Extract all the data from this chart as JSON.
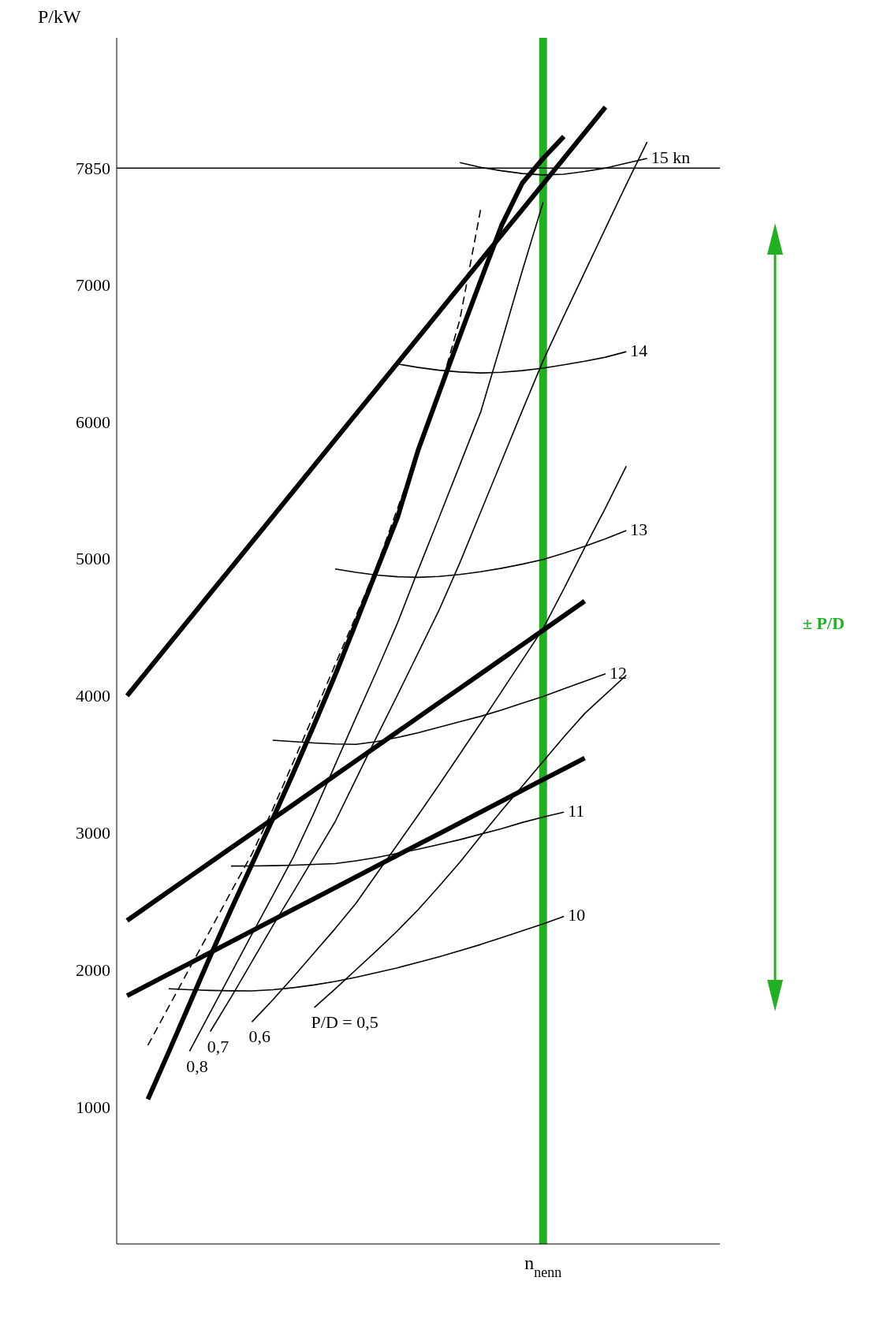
{
  "chart_data": {
    "type": "line",
    "ylabel": "P/kW",
    "ylim": [
      0,
      8800
    ],
    "categories": [
      null,
      null,
      null,
      null,
      null,
      null,
      null,
      null,
      null,
      null,
      null,
      null,
      null,
      null,
      null,
      null,
      null,
      null,
      null,
      null,
      "n$_{nenn}$",
      null,
      null,
      null,
      null,
      null,
      null,
      null,
      null
    ],
    "yticks": [
      1000,
      2000,
      3000,
      4000,
      5000,
      6000,
      7000,
      7850
    ],
    "marker": "none",
    "series": [
      {
        "name": "15 kn",
        "color": "#000000",
        "values": [
          null,
          null,
          null,
          null,
          null,
          null,
          null,
          null,
          null,
          null,
          null,
          null,
          null,
          null,
          null,
          null,
          7890,
          7855,
          7830,
          7810,
          7800,
          7805,
          7825,
          7850,
          7885,
          7920,
          null,
          null,
          null
        ]
      },
      {
        "name": "14",
        "color": "#000000",
        "values": [
          null,
          null,
          null,
          null,
          null,
          null,
          null,
          null,
          null,
          null,
          null,
          null,
          null,
          6420,
          6395,
          6375,
          6362,
          6355,
          6360,
          6372,
          6390,
          6415,
          6440,
          6470,
          6510,
          null,
          null,
          null,
          null
        ]
      },
      {
        "name": "13",
        "color": "#000000",
        "values": [
          null,
          null,
          null,
          null,
          null,
          null,
          null,
          null,
          null,
          null,
          4925,
          4900,
          4880,
          4868,
          4864,
          4870,
          4885,
          4905,
          4930,
          4960,
          4994,
          5040,
          5090,
          5145,
          5205,
          null,
          null,
          null,
          null
        ]
      },
      {
        "name": "12",
        "color": "#000000",
        "values": [
          null,
          null,
          null,
          null,
          null,
          null,
          null,
          3675,
          3665,
          3655,
          3648,
          3645,
          3665,
          3695,
          3730,
          3770,
          3810,
          3850,
          3895,
          3945,
          3995,
          4050,
          4105,
          4160,
          null,
          null,
          null,
          null,
          null
        ]
      },
      {
        "name": "11",
        "color": "#000000",
        "values": [
          null,
          null,
          null,
          null,
          null,
          2757,
          2758,
          2760,
          2764,
          2769,
          2775,
          2795,
          2820,
          2850,
          2880,
          2915,
          2950,
          2990,
          3030,
          3075,
          3115,
          3150,
          null,
          null,
          null,
          null,
          null,
          null,
          null
        ]
      },
      {
        "name": "10",
        "color": "#000000",
        "values": [
          null,
          null,
          1862,
          1855,
          1850,
          1847,
          1846,
          1855,
          1870,
          1890,
          1915,
          1945,
          1980,
          2015,
          2055,
          2095,
          2140,
          2185,
          2235,
          2285,
          2335,
          2390,
          null,
          null,
          null,
          null,
          null,
          null,
          null
        ]
      },
      {
        "color": "#000000",
        "values": [
          4000,
          4187,
          4373,
          4560,
          4747,
          4933,
          5120,
          5307,
          5494,
          5680,
          5867,
          6054,
          6240,
          6427,
          6614,
          6800,
          6987,
          7174,
          7361,
          7547,
          7734,
          7921,
          8108,
          8295,
          null,
          null,
          null,
          null,
          null
        ]
      },
      {
        "color": "#000000",
        "values": [
          2360,
          2466,
          2572,
          2678,
          2784,
          2890,
          2995,
          3101,
          3207,
          3313,
          3419,
          3525,
          3631,
          3737,
          3843,
          3949,
          4054,
          4160,
          4266,
          4372,
          4478,
          4584,
          4690,
          null,
          null,
          null,
          null,
          null,
          null
        ]
      },
      {
        "color": "#000000",
        "values": [
          1811,
          1890,
          1969,
          2047,
          2126,
          2205,
          2284,
          2363,
          2442,
          2520,
          2599,
          2678,
          2757,
          2836,
          2915,
          2993,
          3072,
          3151,
          3230,
          3309,
          3388,
          3466,
          3545,
          null,
          null,
          null,
          null,
          null,
          null
        ]
      },
      {
        "color": "#000000",
        "values": [
          null,
          1055,
          1400,
          1750,
          2100,
          2440,
          2770,
          3100,
          3440,
          3790,
          4150,
          4530,
          4915,
          5300,
          5795,
          6210,
          6625,
          7030,
          7430,
          7740,
          7920,
          8080,
          null,
          null,
          null,
          null,
          null,
          null,
          null
        ]
      },
      {
        "name": "P/D = 0,5",
        "color": "#000000",
        "values": [
          null,
          null,
          null,
          null,
          null,
          null,
          null,
          null,
          null,
          1725,
          1860,
          2000,
          2140,
          2285,
          2440,
          2610,
          2785,
          2975,
          3160,
          3340,
          3520,
          3700,
          3870,
          4010,
          4150,
          null,
          null,
          null,
          null
        ]
      },
      {
        "name": "0,6",
        "color": "#000000",
        "values": [
          null,
          null,
          null,
          null,
          null,
          null,
          1620,
          1780,
          1950,
          2125,
          2300,
          2485,
          2700,
          2915,
          3130,
          3350,
          3575,
          3800,
          4030,
          4260,
          4490,
          4780,
          5080,
          5370,
          5675,
          null,
          null,
          null,
          null
        ]
      },
      {
        "name": "0,7",
        "color": "#000000",
        "values": [
          null,
          null,
          null,
          null,
          1550,
          1800,
          2060,
          2320,
          2570,
          2825,
          3080,
          3390,
          3700,
          4005,
          4315,
          4625,
          4970,
          5340,
          5710,
          6080,
          6444,
          6770,
          7090,
          7410,
          7730,
          8040,
          null,
          null,
          null
        ]
      },
      {
        "name": "0,8",
        "color": "#000000",
        "values": [
          null,
          null,
          null,
          1405,
          1690,
          1975,
          2260,
          2540,
          2825,
          3150,
          3495,
          3840,
          4180,
          4530,
          4920,
          5300,
          5685,
          6070,
          6580,
          7100,
          7600,
          null,
          null,
          null,
          null,
          null,
          null,
          null,
          null
        ]
      },
      {
        "color": "#000000",
        "line_style": "dashed",
        "values": [
          null,
          1450,
          1730,
          2010,
          2290,
          2570,
          2845,
          3170,
          3520,
          3870,
          4225,
          4580,
          4945,
          5365,
          5785,
          6210,
          6745,
          7550,
          null,
          null,
          null,
          null,
          null,
          null,
          null,
          null,
          null,
          null,
          null
        ]
      }
    ],
    "ref_lines": [
      {
        "axis": "x",
        "value": "n$_{nenn}$",
        "color": "#22b022"
      },
      {
        "axis": "y",
        "value": 7850,
        "color": "#000000"
      }
    ],
    "annotations": [
      "± P/D"
    ]
  }
}
